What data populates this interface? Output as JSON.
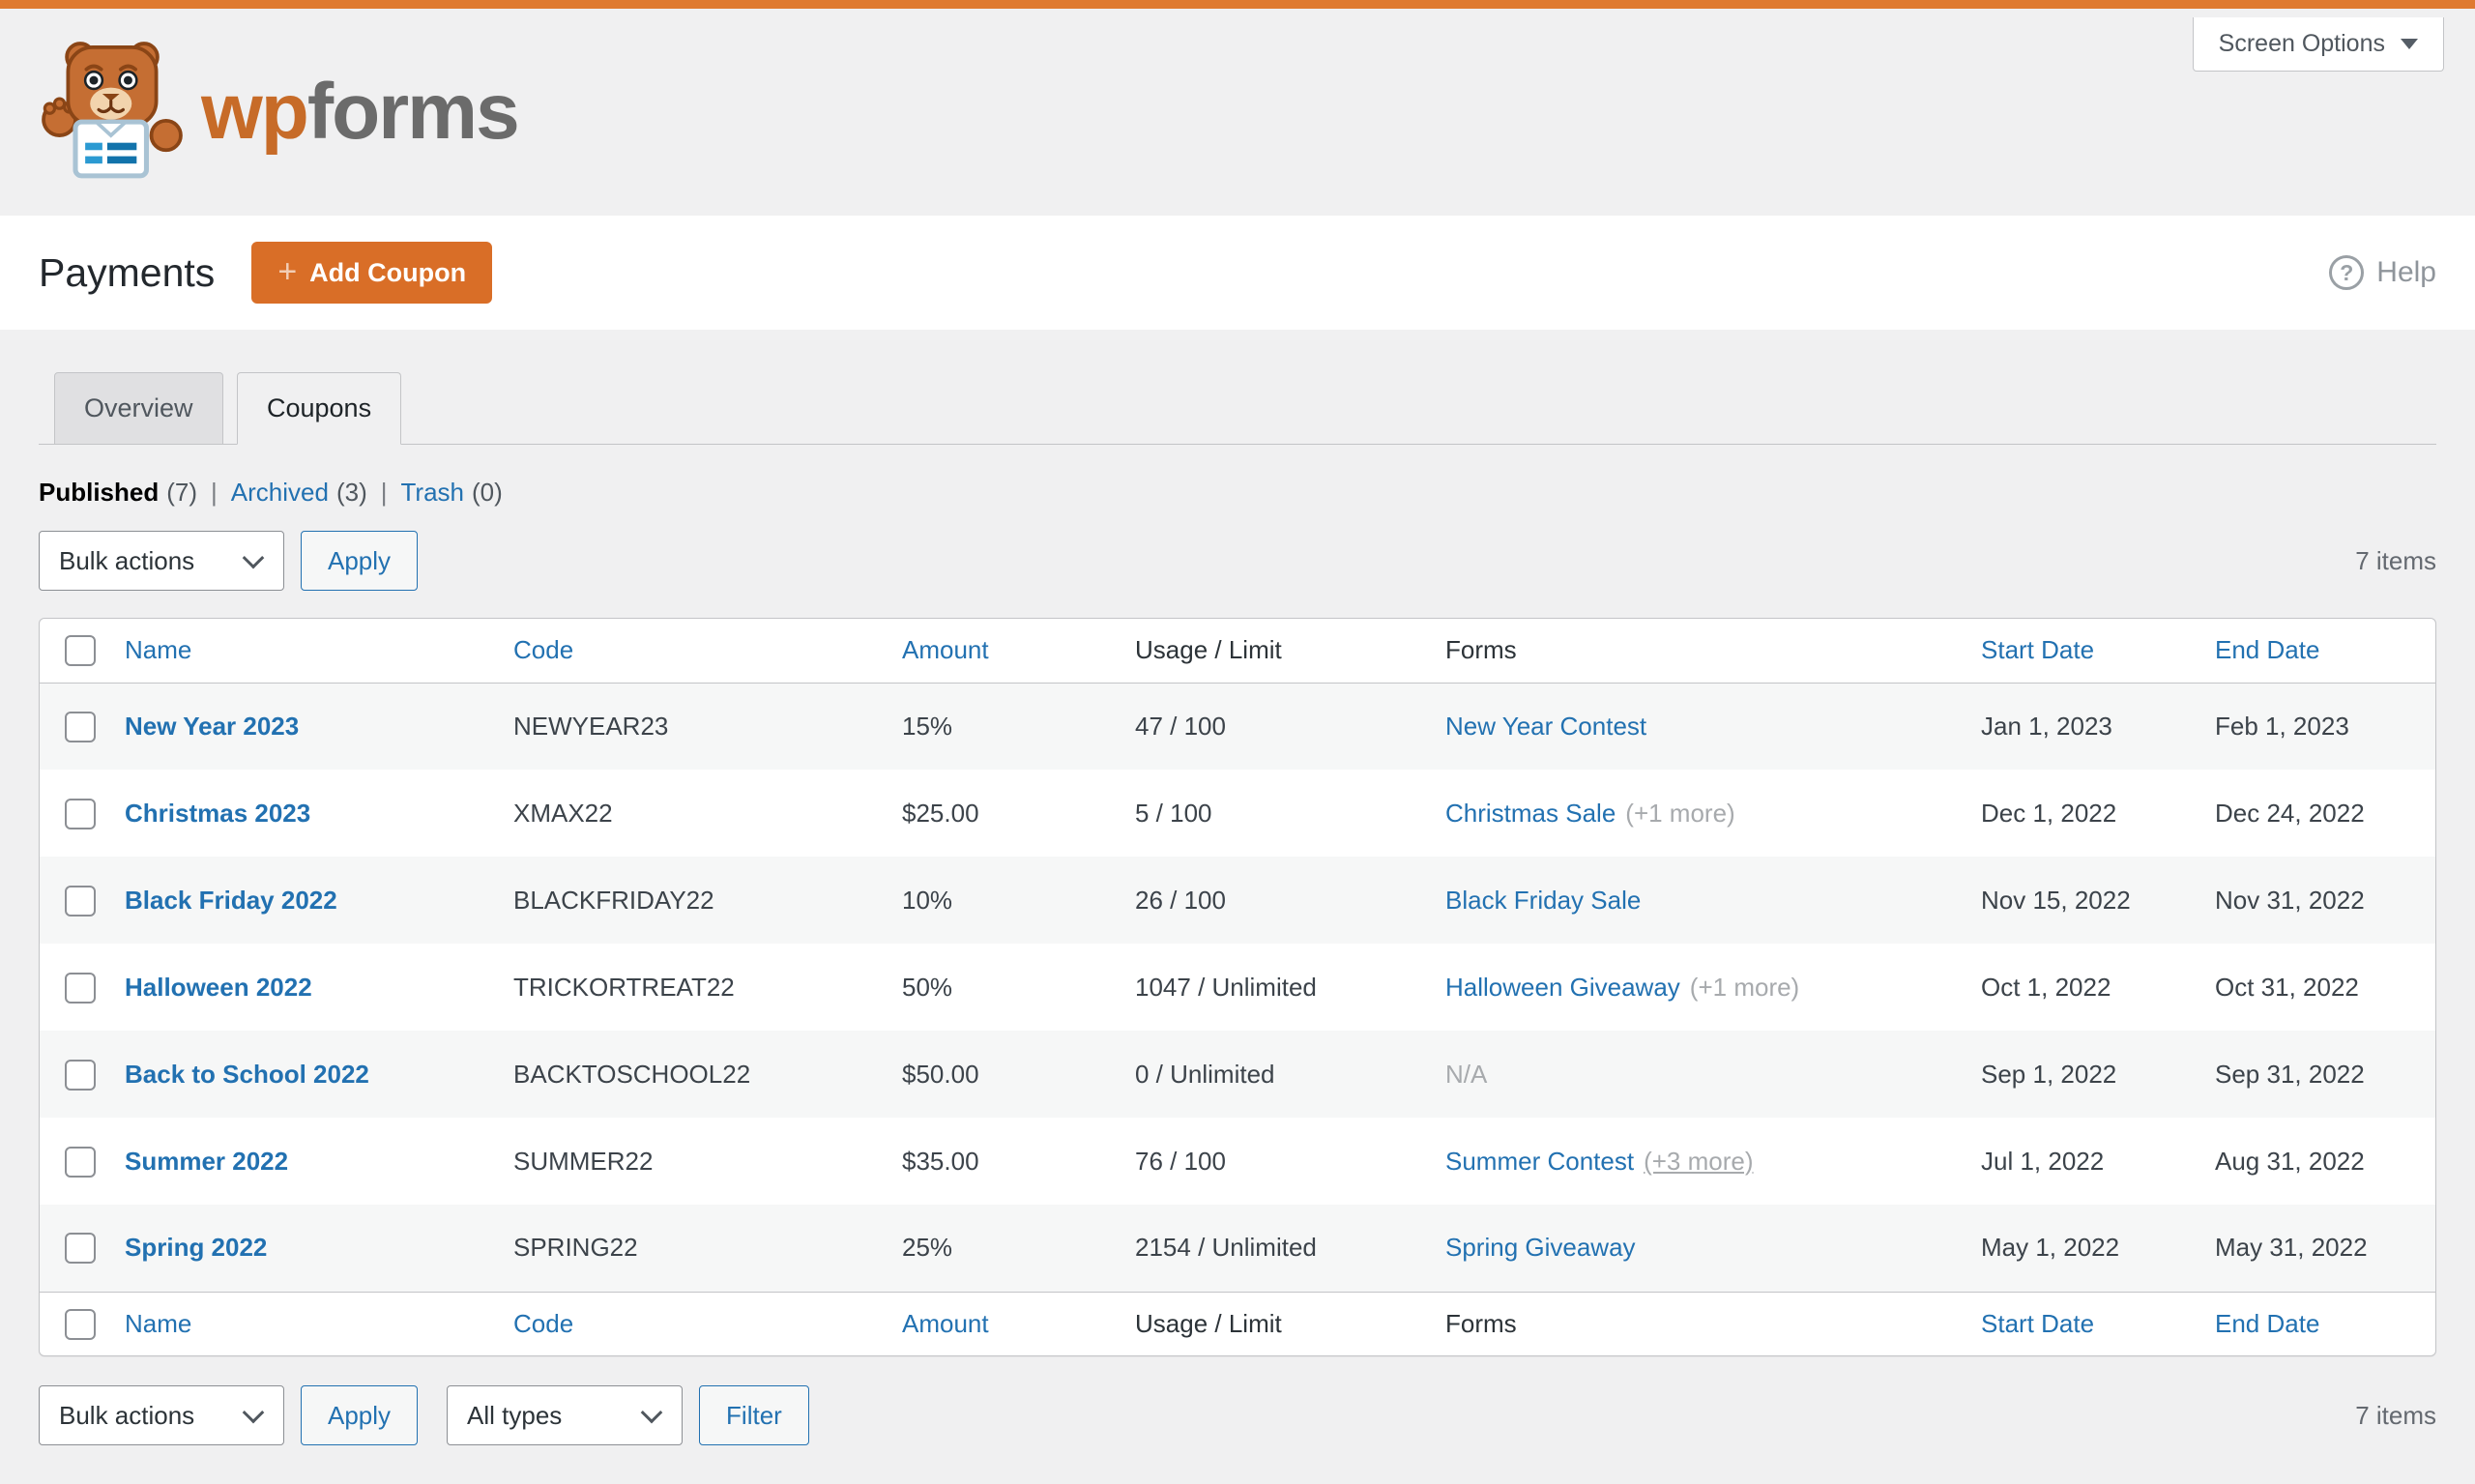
{
  "colors": {
    "accent_orange": "#df7a30",
    "button_orange": "#d96e27",
    "link_blue": "#2271b1",
    "row_stripe": "#f6f7f7",
    "page_background": "#f0f0f1",
    "border_gray": "#c3c4c7",
    "muted_gray": "#a7aaad"
  },
  "icons": {
    "plus": "+",
    "help": "?",
    "caret_down": "caret-down",
    "select_chevron": "chevron-down",
    "logo": "wpforms-bear"
  },
  "header": {
    "brand_wp": "wp",
    "brand_forms": "forms",
    "screen_options_label": "Screen Options"
  },
  "page": {
    "title": "Payments",
    "add_coupon_label": "Add Coupon",
    "help_label": "Help"
  },
  "tabs": [
    {
      "label": "Overview",
      "active": false
    },
    {
      "label": "Coupons",
      "active": true
    }
  ],
  "filters": {
    "views": [
      {
        "label": "Published",
        "count": "(7)",
        "current": true
      },
      {
        "label": "Archived",
        "count": "(3)",
        "current": false
      },
      {
        "label": "Trash",
        "count": "(0)",
        "current": false
      }
    ],
    "bulk_actions_label": "Bulk actions",
    "apply_label": "Apply",
    "all_types_label": "All types",
    "filter_label": "Filter",
    "items_count": "7 items"
  },
  "table": {
    "columns": [
      "Name",
      "Code",
      "Amount",
      "Usage / Limit",
      "Forms",
      "Start Date",
      "End Date"
    ],
    "sortable": [
      true,
      true,
      true,
      false,
      false,
      true,
      true
    ],
    "rows": [
      {
        "name": "New Year 2023",
        "code": "NEWYEAR23",
        "amount": "15%",
        "usage": "47 / 100",
        "form": "New Year Contest",
        "form_extra": "",
        "form_extra_underline": false,
        "form_na": "",
        "start": "Jan 1, 2023",
        "end": "Feb 1, 2023"
      },
      {
        "name": "Christmas 2023",
        "code": "XMAX22",
        "amount": "$25.00",
        "usage": "5 / 100",
        "form": "Christmas Sale",
        "form_extra": "(+1 more)",
        "form_extra_underline": false,
        "form_na": "",
        "start": "Dec 1, 2022",
        "end": "Dec 24, 2022"
      },
      {
        "name": "Black Friday 2022",
        "code": "BLACKFRIDAY22",
        "amount": "10%",
        "usage": "26 / 100",
        "form": "Black Friday Sale",
        "form_extra": "",
        "form_extra_underline": false,
        "form_na": "",
        "start": "Nov 15, 2022",
        "end": "Nov 31, 2022"
      },
      {
        "name": "Halloween 2022",
        "code": "TRICKORTREAT22",
        "amount": "50%",
        "usage": "1047 / Unlimited",
        "form": "Halloween Giveaway",
        "form_extra": "(+1 more)",
        "form_extra_underline": false,
        "form_na": "",
        "start": "Oct 1, 2022",
        "end": "Oct 31, 2022"
      },
      {
        "name": "Back to School 2022",
        "code": "BACKTOSCHOOL22",
        "amount": "$50.00",
        "usage": "0 / Unlimited",
        "form": "",
        "form_extra": "",
        "form_extra_underline": false,
        "form_na": "N/A",
        "start": "Sep 1, 2022",
        "end": "Sep 31, 2022"
      },
      {
        "name": "Summer 2022",
        "code": "SUMMER22",
        "amount": "$35.00",
        "usage": "76 / 100",
        "form": "Summer Contest",
        "form_extra": "(+3 more)",
        "form_extra_underline": true,
        "form_na": "",
        "start": "Jul 1, 2022",
        "end": "Aug 31, 2022"
      },
      {
        "name": "Spring 2022",
        "code": "SPRING22",
        "amount": "25%",
        "usage": "2154 / Unlimited",
        "form": "Spring Giveaway",
        "form_extra": "",
        "form_extra_underline": false,
        "form_na": "",
        "start": "May 1, 2022",
        "end": "May 31, 2022"
      }
    ]
  }
}
